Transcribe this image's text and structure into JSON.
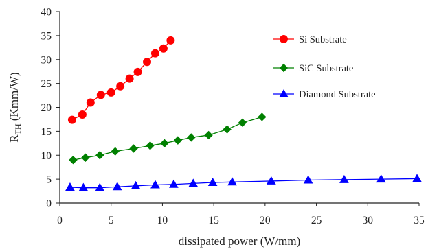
{
  "chart_data": {
    "type": "line",
    "title": "",
    "xlabel": "dissipated power (W/mm)",
    "ylabel_main": "R",
    "ylabel_sub": "TH",
    "ylabel_tail": " (Kmm/W)",
    "xlim": [
      0,
      35
    ],
    "ylim": [
      0,
      40
    ],
    "xticks": [
      0,
      5,
      10,
      15,
      20,
      25,
      30,
      35
    ],
    "yticks": [
      0,
      5,
      10,
      15,
      20,
      25,
      30,
      35,
      40
    ],
    "grid": false,
    "legend_position": "right",
    "series": [
      {
        "name": "Si Substrate",
        "color": "#ff0000",
        "marker": "circle",
        "x": [
          1.2,
          2.2,
          3.0,
          4.0,
          5.0,
          5.9,
          6.8,
          7.6,
          8.5,
          9.3,
          10.1,
          10.8
        ],
        "y": [
          17.4,
          18.5,
          21.0,
          22.6,
          23.1,
          24.4,
          26.0,
          27.4,
          29.5,
          31.3,
          32.3,
          34.0
        ]
      },
      {
        "name": "SiC Substrate",
        "color": "#008000",
        "marker": "diamond",
        "x": [
          1.3,
          2.5,
          3.9,
          5.4,
          7.2,
          8.8,
          10.2,
          11.5,
          12.8,
          14.5,
          16.3,
          17.8,
          19.7
        ],
        "y": [
          9.0,
          9.5,
          10.0,
          10.8,
          11.4,
          12.0,
          12.5,
          13.1,
          13.7,
          14.2,
          15.4,
          16.8,
          18.0
        ]
      },
      {
        "name": "Diamond Substrate",
        "color": "#0000ff",
        "marker": "triangle",
        "x": [
          1.0,
          2.3,
          3.9,
          5.6,
          7.4,
          9.3,
          11.1,
          13.0,
          14.9,
          16.8,
          20.6,
          24.2,
          27.7,
          31.3,
          34.8
        ],
        "y": [
          3.3,
          3.2,
          3.2,
          3.4,
          3.6,
          3.8,
          3.9,
          4.1,
          4.3,
          4.4,
          4.6,
          4.8,
          4.9,
          5.0,
          5.1
        ]
      }
    ]
  }
}
